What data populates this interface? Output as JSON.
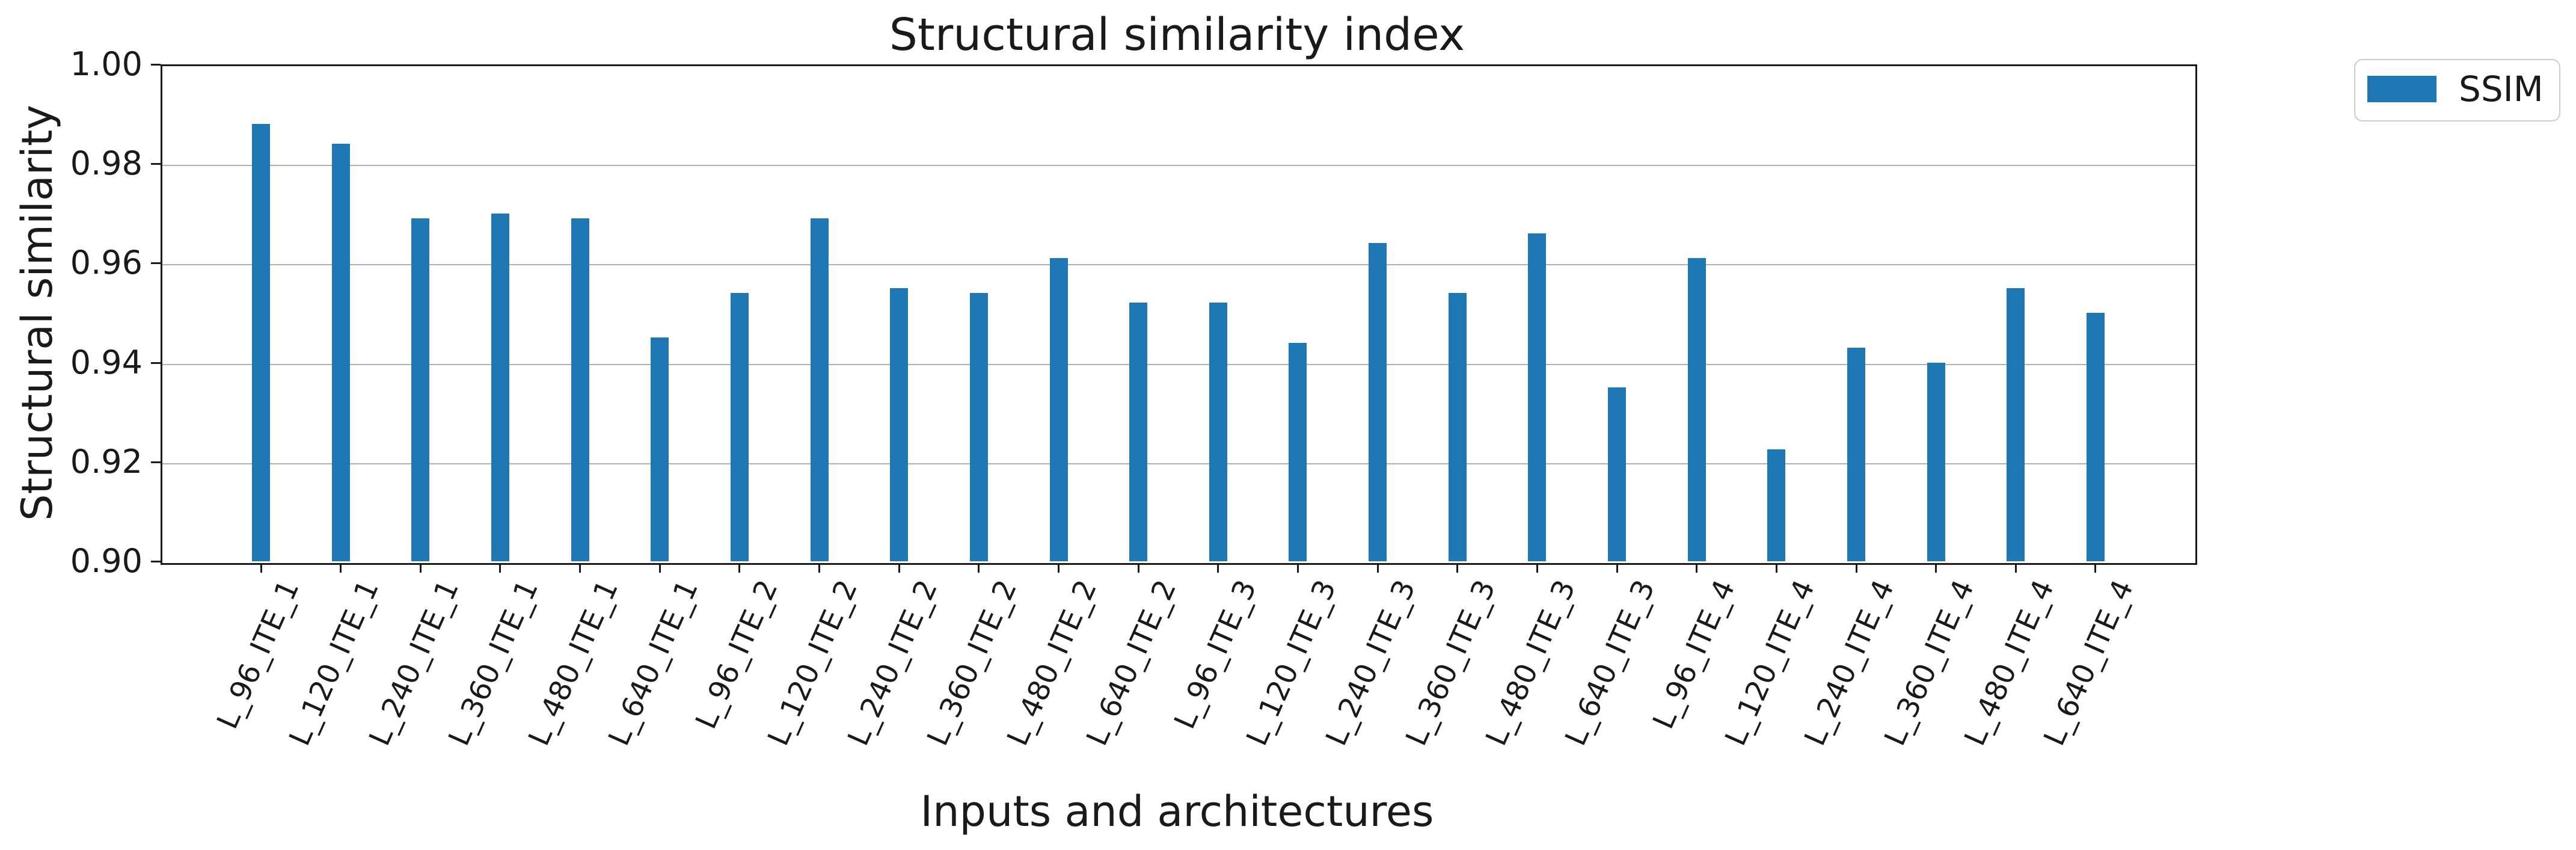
{
  "chart_data": {
    "type": "bar",
    "title": "Structural similarity index",
    "xlabel": "Inputs and architectures",
    "ylabel": "Structural similarity",
    "categories": [
      "L_96_ITE_1",
      "L_120_ITE_1",
      "L_240_ITE_1",
      "L_360_ITE_1",
      "L_480_ITE_1",
      "L_640_ITE_1",
      "L_96_ITE_2",
      "L_120_ITE_2",
      "L_240_ITE_2",
      "L_360_ITE_2",
      "L_480_ITE_2",
      "L_640_ITE_2",
      "L_96_ITE_3",
      "L_120_ITE_3",
      "L_240_ITE_3",
      "L_360_ITE_3",
      "L_480_ITE_3",
      "L_640_ITE_3",
      "L_96_ITE_4",
      "L_120_ITE_4",
      "L_240_ITE_4",
      "L_360_ITE_4",
      "L_480_ITE_4",
      "L_640_ITE_4"
    ],
    "series": [
      {
        "name": "SSIM",
        "color": "#1f77b4",
        "values": [
          0.988,
          0.984,
          0.969,
          0.97,
          0.969,
          0.945,
          0.954,
          0.969,
          0.955,
          0.954,
          0.961,
          0.952,
          0.952,
          0.944,
          0.964,
          0.954,
          0.966,
          0.935,
          0.961,
          0.9225,
          0.943,
          0.94,
          0.955,
          0.95
        ]
      }
    ],
    "ylim": [
      0.9,
      1.0
    ],
    "yticks": [
      1.0,
      0.98,
      0.96,
      0.94,
      0.92,
      0.9
    ],
    "grid": true,
    "grid_color": "#b0b0b0",
    "axis_color": "#1a1a1a",
    "legend_position": "upper-right-outside"
  }
}
